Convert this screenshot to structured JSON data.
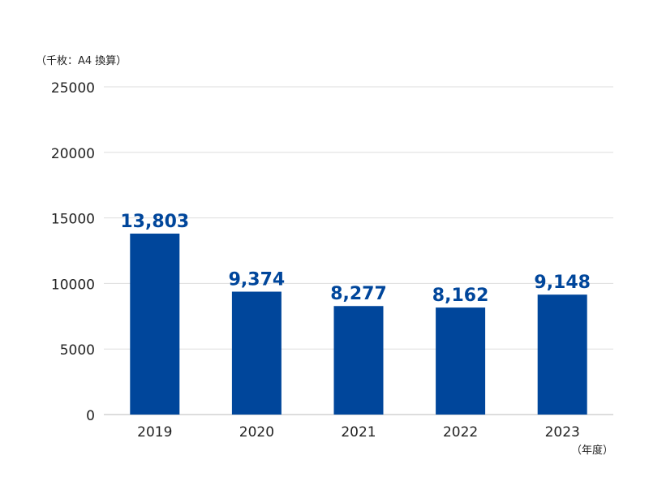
{
  "chart_data": {
    "type": "bar",
    "title": "",
    "ylabel": "（千枚：A4 換算）",
    "xlabel": "（年度）",
    "categories": [
      "2019",
      "2020",
      "2021",
      "2022",
      "2023"
    ],
    "values": [
      13803,
      9374,
      8277,
      8162,
      9148
    ],
    "value_labels": [
      "13,803",
      "9,374",
      "8,277",
      "8,162",
      "9,148"
    ],
    "ylim": [
      0,
      25000
    ],
    "yticks": [
      "0",
      "5000",
      "10000",
      "15000",
      "20000",
      "25000"
    ],
    "grid": true,
    "legend": "none",
    "colors": {
      "bar": "#00469B",
      "value_label": "#00469B",
      "grid": "#DDDDDD",
      "text": "#222222"
    }
  }
}
